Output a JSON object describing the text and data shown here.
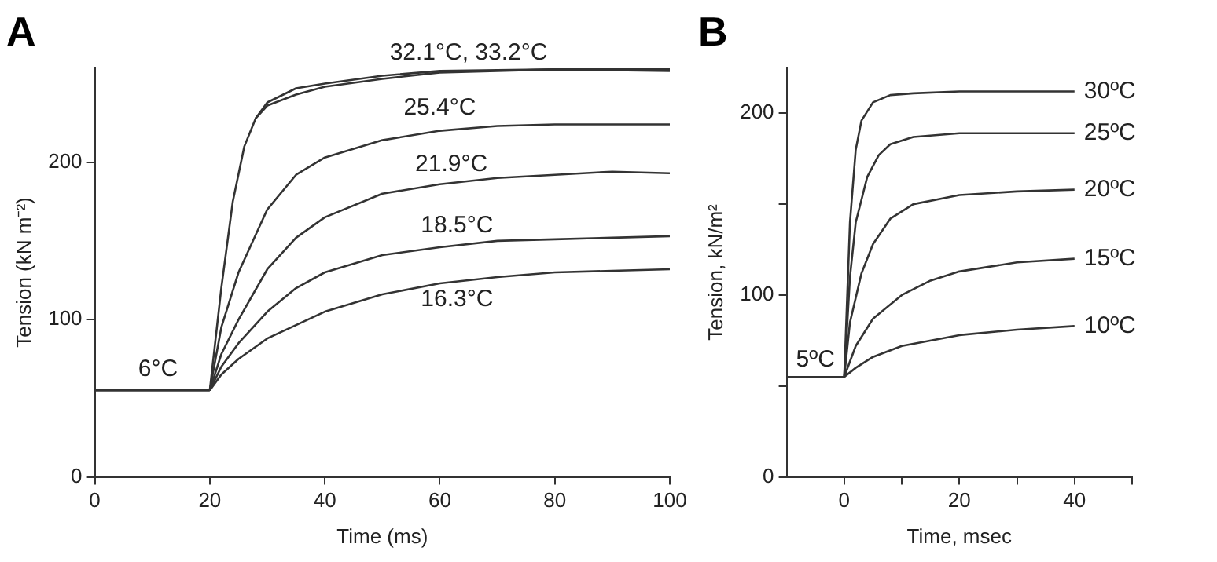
{
  "chart_data": [
    {
      "type": "line",
      "title": "A",
      "xlabel": "Time (ms)",
      "ylabel": "Tension (kN m⁻²)",
      "xlim": [
        0,
        100
      ],
      "ylim": [
        0,
        260
      ],
      "xticks": [
        0,
        20,
        40,
        60,
        80,
        100
      ],
      "yticks": [
        0,
        100,
        200
      ],
      "grid": false,
      "legend": false,
      "marker": "none",
      "line_style": "solid",
      "series": [
        {
          "color": "#333333",
          "x": [
            0,
            10,
            20
          ],
          "values": [
            55,
            55,
            55
          ]
        },
        {
          "color": "#333333",
          "x": [
            20,
            22,
            24,
            26,
            28,
            30,
            35,
            40,
            50,
            60,
            80,
            100
          ],
          "values": [
            55,
            120,
            175,
            210,
            228,
            238,
            247,
            250,
            255,
            258,
            259,
            259
          ]
        },
        {
          "color": "#333333",
          "x": [
            28,
            30,
            35,
            40,
            50,
            60,
            80,
            100
          ],
          "values": [
            228,
            236,
            243,
            248,
            253,
            257,
            259,
            258
          ]
        },
        {
          "color": "#333333",
          "x": [
            20,
            22,
            25,
            30,
            35,
            40,
            50,
            60,
            70,
            80,
            100
          ],
          "values": [
            55,
            95,
            130,
            170,
            192,
            203,
            214,
            220,
            223,
            224,
            224
          ]
        },
        {
          "color": "#333333",
          "x": [
            20,
            22,
            25,
            30,
            35,
            40,
            50,
            60,
            70,
            80,
            90,
            100
          ],
          "values": [
            55,
            78,
            100,
            132,
            152,
            165,
            180,
            186,
            190,
            192,
            194,
            193
          ]
        },
        {
          "color": "#333333",
          "x": [
            20,
            22,
            25,
            30,
            35,
            40,
            50,
            60,
            70,
            80,
            90,
            100
          ],
          "values": [
            55,
            70,
            85,
            105,
            120,
            130,
            141,
            146,
            150,
            151,
            152,
            153
          ]
        },
        {
          "color": "#333333",
          "x": [
            20,
            22,
            25,
            30,
            40,
            50,
            60,
            70,
            80,
            90,
            100
          ],
          "values": [
            55,
            65,
            75,
            88,
            105,
            116,
            123,
            127,
            130,
            131,
            132
          ]
        }
      ],
      "annotations": [
        {
          "text": "6°C",
          "x": 11,
          "y": 58
        },
        {
          "text": "32.1°C, 33.2°C",
          "x": 65,
          "y": 259
        },
        {
          "text": "25.4°C",
          "x": 60,
          "y": 224
        },
        {
          "text": "21.9°C",
          "x": 62,
          "y": 188
        },
        {
          "text": "18.5°C",
          "x": 63,
          "y": 149
        },
        {
          "text": "16.3°C",
          "x": 63,
          "y": 124
        }
      ]
    },
    {
      "type": "line",
      "title": "B",
      "xlabel": "Time, msec",
      "ylabel": "Tension, kN/m²",
      "xlim": [
        -10,
        50
      ],
      "ylim": [
        0,
        225
      ],
      "xticks": [
        0,
        {
          "value": 10,
          "label": null
        },
        20,
        {
          "value": 30,
          "label": null
        },
        40,
        {
          "value": 50,
          "label": null
        }
      ],
      "yticks": [
        0,
        {
          "value": 50,
          "label": null
        },
        100,
        {
          "value": 150,
          "label": null
        },
        200
      ],
      "grid": false,
      "legend": false,
      "marker": "none",
      "line_style": "solid",
      "series": [
        {
          "name": "5ºC",
          "color": "#333333",
          "x": [
            -10,
            0
          ],
          "values": [
            55,
            55
          ]
        },
        {
          "name": "30ºC",
          "color": "#333333",
          "x": [
            0,
            1,
            2,
            3,
            5,
            8,
            12,
            20,
            40
          ],
          "values": [
            55,
            140,
            180,
            196,
            206,
            210,
            211,
            212,
            212
          ]
        },
        {
          "name": "25ºC",
          "color": "#333333",
          "x": [
            0,
            1,
            2,
            4,
            6,
            8,
            12,
            20,
            40
          ],
          "values": [
            55,
            110,
            140,
            165,
            177,
            183,
            187,
            189,
            189
          ]
        },
        {
          "name": "20ºC",
          "color": "#333333",
          "x": [
            0,
            1,
            3,
            5,
            8,
            12,
            20,
            30,
            40
          ],
          "values": [
            55,
            85,
            112,
            128,
            142,
            150,
            155,
            157,
            158
          ]
        },
        {
          "name": "15ºC",
          "color": "#333333",
          "x": [
            0,
            2,
            5,
            10,
            15,
            20,
            30,
            40
          ],
          "values": [
            55,
            72,
            87,
            100,
            108,
            113,
            118,
            120
          ]
        },
        {
          "name": "10ºC",
          "color": "#333333",
          "x": [
            0,
            2,
            5,
            10,
            20,
            30,
            40
          ],
          "values": [
            55,
            60,
            66,
            72,
            78,
            81,
            83
          ]
        }
      ]
    }
  ]
}
